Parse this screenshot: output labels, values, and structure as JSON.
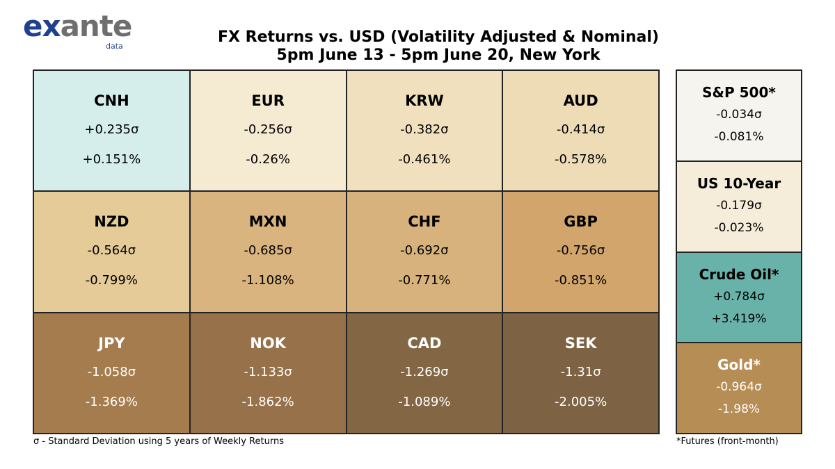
{
  "logo": {
    "word_a": "ex",
    "word_b": "ante",
    "sub": "data"
  },
  "title_line1": "FX Returns vs. USD (Volatility Adjusted & Nominal)",
  "title_line2": "5pm June 13 - 5pm June 20, New York",
  "chart_data": [
    {
      "type": "table",
      "cells": [
        {
          "name": "CNH",
          "sigma": "+0.235σ",
          "nominal": "+0.151%",
          "sigma_value": 0.235,
          "nominal_value": 0.151,
          "color": "#d6eeeb"
        },
        {
          "name": "EUR",
          "sigma": "-0.256σ",
          "nominal": "-0.26%",
          "sigma_value": -0.256,
          "nominal_value": -0.26,
          "color": "#f5ead2"
        },
        {
          "name": "KRW",
          "sigma": "-0.382σ",
          "nominal": "-0.461%",
          "sigma_value": -0.382,
          "nominal_value": -0.461,
          "color": "#f0e0bd"
        },
        {
          "name": "AUD",
          "sigma": "-0.414σ",
          "nominal": "-0.578%",
          "sigma_value": -0.414,
          "nominal_value": -0.578,
          "color": "#eddcb6"
        },
        {
          "name": "NZD",
          "sigma": "-0.564σ",
          "nominal": "-0.799%",
          "sigma_value": -0.564,
          "nominal_value": -0.799,
          "color": "#e5cb98"
        },
        {
          "name": "MXN",
          "sigma": "-0.685σ",
          "nominal": "-1.108%",
          "sigma_value": -0.685,
          "nominal_value": -1.108,
          "color": "#dab47f"
        },
        {
          "name": "CHF",
          "sigma": "-0.692σ",
          "nominal": "-0.771%",
          "sigma_value": -0.692,
          "nominal_value": -0.771,
          "color": "#d8b27d"
        },
        {
          "name": "GBP",
          "sigma": "-0.756σ",
          "nominal": "-0.851%",
          "sigma_value": -0.756,
          "nominal_value": -0.851,
          "color": "#d1a56c"
        },
        {
          "name": "JPY",
          "sigma": "-1.058σ",
          "nominal": "-1.369%",
          "sigma_value": -1.058,
          "nominal_value": -1.369,
          "color": "#a47c4d",
          "text_color": "#ffffff"
        },
        {
          "name": "NOK",
          "sigma": "-1.133σ",
          "nominal": "-1.862%",
          "sigma_value": -1.133,
          "nominal_value": -1.862,
          "color": "#967149",
          "text_color": "#ffffff"
        },
        {
          "name": "CAD",
          "sigma": "-1.269σ",
          "nominal": "-1.089%",
          "sigma_value": -1.269,
          "nominal_value": -1.089,
          "color": "#836745",
          "text_color": "#ffffff"
        },
        {
          "name": "SEK",
          "sigma": "-1.31σ",
          "nominal": "-2.005%",
          "sigma_value": -1.31,
          "nominal_value": -2.005,
          "color": "#7d6344",
          "text_color": "#ffffff"
        }
      ]
    },
    {
      "type": "table",
      "cells": [
        {
          "name": "S&P 500*",
          "sigma": "-0.034σ",
          "nominal": "-0.081%",
          "sigma_value": -0.034,
          "nominal_value": -0.081,
          "color": "#f6f4ef"
        },
        {
          "name": "US 10-Year",
          "sigma": "-0.179σ",
          "nominal": "-0.023%",
          "sigma_value": -0.179,
          "nominal_value": -0.023,
          "color": "#f5ecd9"
        },
        {
          "name": "Crude Oil*",
          "sigma": "+0.784σ",
          "nominal": "+3.419%",
          "sigma_value": 0.784,
          "nominal_value": 3.419,
          "color": "#69b2a9"
        },
        {
          "name": "Gold*",
          "sigma": "-0.964σ",
          "nominal": "-1.98%",
          "sigma_value": -0.964,
          "nominal_value": -1.98,
          "color": "#b68d55",
          "text_color": "#ffffff"
        }
      ]
    }
  ],
  "footnote_left": "σ - Standard Deviation using 5 years of Weekly Returns",
  "footnote_right": "*Futures (front-month)"
}
